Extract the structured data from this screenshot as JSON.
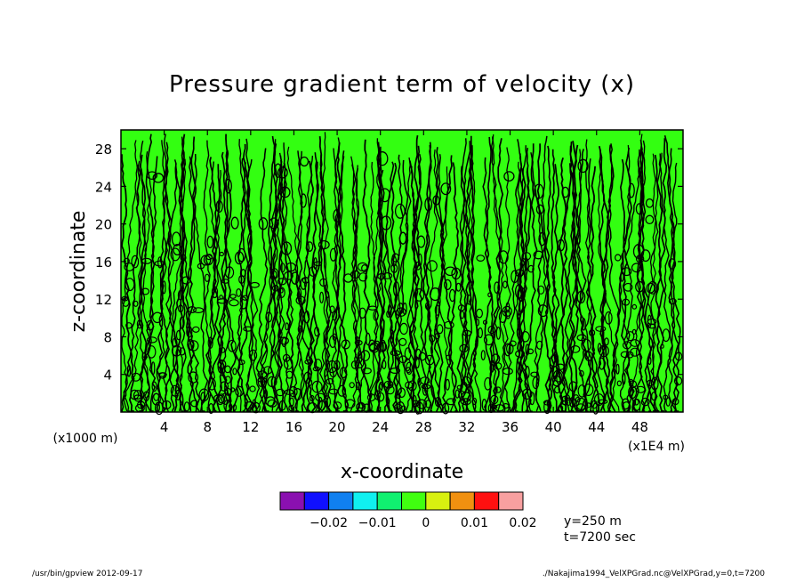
{
  "chart_data": {
    "type": "heatmap",
    "title": "Pressure gradient term of velocity (x)",
    "xlabel": "x-coordinate",
    "ylabel": "z-coordinate",
    "x_unit": "(x1E4 m)",
    "y_unit": "(x1000 m)",
    "xlim": [
      0,
      52
    ],
    "ylim": [
      0,
      30
    ],
    "xticks": [
      4,
      8,
      12,
      16,
      20,
      24,
      28,
      32,
      36,
      40,
      44,
      48
    ],
    "yticks": [
      4,
      8,
      12,
      16,
      20,
      24,
      28
    ],
    "dominant_color": "#33ff11",
    "contour_color": "#000000",
    "colorbar": {
      "colors": [
        "#8a10b0",
        "#1010ff",
        "#1080f0",
        "#10f0f0",
        "#10f070",
        "#40ff10",
        "#d8f010",
        "#f09010",
        "#ff1010",
        "#f8a0a0"
      ],
      "tick_labels": [
        "−0.02",
        "−0.01",
        "0",
        "0.01",
        "0.02"
      ]
    },
    "info": [
      "y=250 m",
      "t=7200 sec"
    ]
  },
  "footer": {
    "left": "/usr/bin/gpview   2012-09-17",
    "right": "./Nakajima1994_VelXPGrad.nc@VelXPGrad,y=0,t=7200"
  }
}
